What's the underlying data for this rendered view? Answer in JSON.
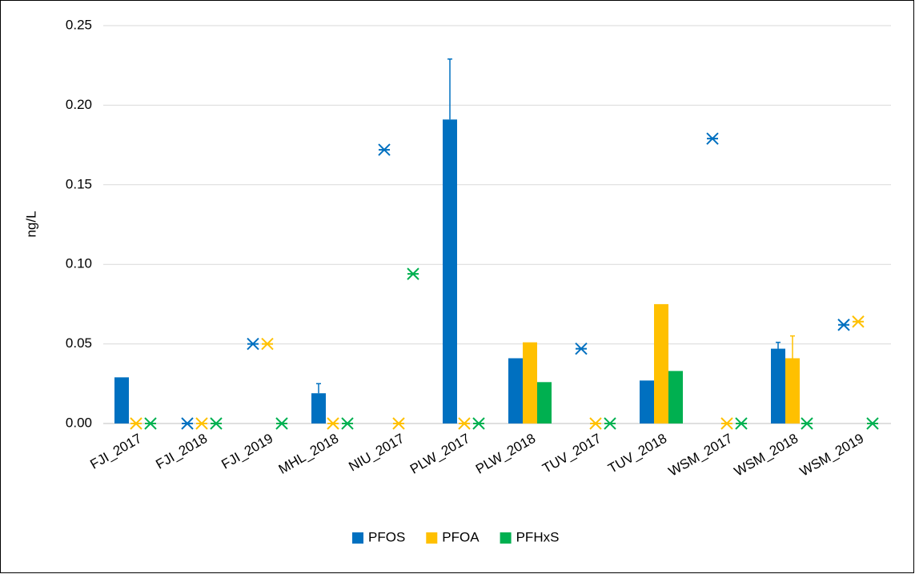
{
  "chart_data": {
    "type": "bar",
    "y_label": "ng/L",
    "categories": [
      "FJI_2017",
      "FJI_2018",
      "FJI_2019",
      "MHL_2018",
      "NIU_2017",
      "PLW_2017",
      "PLW_2018",
      "TUV_2017",
      "TUV_2018",
      "WSM_2017",
      "WSM_2018",
      "WSM_2019"
    ],
    "series": [
      {
        "name": "PFOS",
        "color": "#0070c0",
        "values": [
          0.029,
          null,
          null,
          0.019,
          null,
          0.191,
          0.041,
          null,
          0.027,
          null,
          0.047,
          null
        ],
        "errors": [
          null,
          null,
          null,
          0.006,
          null,
          0.038,
          null,
          null,
          null,
          null,
          0.004,
          null
        ],
        "point_values": [
          null,
          0,
          0.05,
          null,
          0.172,
          null,
          null,
          0.047,
          null,
          0.179,
          null,
          0.062
        ]
      },
      {
        "name": "PFOA",
        "color": "#ffc000",
        "values": [
          null,
          null,
          null,
          null,
          null,
          null,
          0.051,
          null,
          0.075,
          null,
          0.041,
          null
        ],
        "errors": [
          null,
          null,
          null,
          null,
          null,
          null,
          null,
          null,
          null,
          null,
          0.014,
          null
        ],
        "point_values": [
          0,
          0,
          0.05,
          0,
          0,
          0,
          null,
          0,
          null,
          0,
          null,
          0.064
        ]
      },
      {
        "name": "PFHxS",
        "color": "#00b050",
        "values": [
          null,
          null,
          null,
          null,
          null,
          null,
          0.026,
          null,
          0.033,
          null,
          null,
          null
        ],
        "errors": [
          null,
          null,
          null,
          null,
          null,
          null,
          null,
          null,
          null,
          null,
          null,
          null
        ],
        "point_values": [
          0,
          0,
          0,
          0,
          0.094,
          0,
          null,
          0,
          null,
          0,
          0,
          0
        ]
      }
    ],
    "ylim": [
      0,
      0.25
    ],
    "yticks": [
      {
        "value": 0,
        "label": "0.00"
      },
      {
        "value": 0.05,
        "label": "0.05"
      },
      {
        "value": 0.1,
        "label": "0.10"
      },
      {
        "value": 0.15,
        "label": "0.15"
      },
      {
        "value": 0.2,
        "label": "0.20"
      },
      {
        "value": 0.25,
        "label": "0.25"
      }
    ],
    "grid": true,
    "legend": "bottom"
  }
}
